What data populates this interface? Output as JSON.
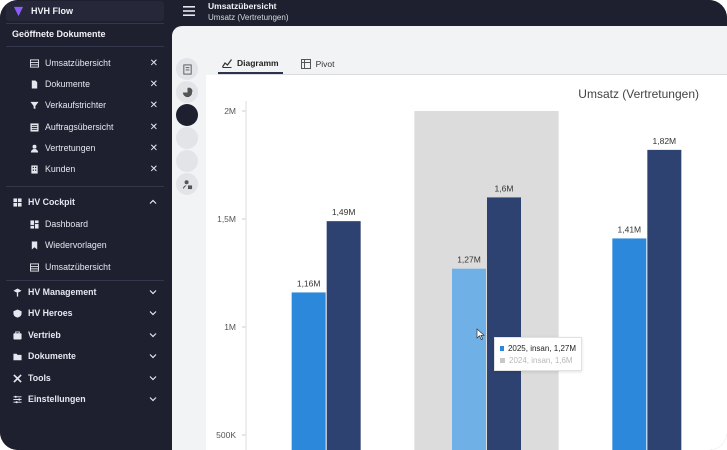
{
  "app": {
    "title": "HVH Flow"
  },
  "header": {
    "title": "Umsatzübersicht",
    "subtitle": "Umsatz (Vertretungen)"
  },
  "sidebar": {
    "open_docs_title": "Geöffnete Dokumente",
    "open_docs": [
      {
        "label": "Umsatzübersicht",
        "icon": "table-icon"
      },
      {
        "label": "Dokumente",
        "icon": "file-icon"
      },
      {
        "label": "Verkaufstrichter",
        "icon": "funnel-icon"
      },
      {
        "label": "Auftragsübersicht",
        "icon": "list-icon"
      },
      {
        "label": "Vertretungen",
        "icon": "user-icon"
      },
      {
        "label": "Kunden",
        "icon": "building-icon"
      }
    ],
    "cockpit": {
      "label": "HV Cockpit",
      "items": [
        {
          "label": "Dashboard",
          "icon": "dashboard-icon"
        },
        {
          "label": "Wiedervorlagen",
          "icon": "bookmark-icon"
        },
        {
          "label": "Umsatzübersicht",
          "icon": "table-icon"
        }
      ]
    },
    "groups": [
      {
        "label": "HV Management",
        "icon": "management-icon"
      },
      {
        "label": "HV Heroes",
        "icon": "heroes-icon"
      },
      {
        "label": "Vertrieb",
        "icon": "sales-icon"
      },
      {
        "label": "Dokumente",
        "icon": "folder-icon"
      },
      {
        "label": "Tools",
        "icon": "tools-icon"
      },
      {
        "label": "Einstellungen",
        "icon": "settings-icon"
      }
    ]
  },
  "tabs": [
    {
      "label": "Diagramm",
      "active": true
    },
    {
      "label": "Pivot",
      "active": false
    }
  ],
  "colors": {
    "series_2025": "#2b88db",
    "series_2024": "#2e4272",
    "highlight": "#dcdcdc",
    "sidebar_bg": "#1e2030"
  },
  "chart_data": {
    "type": "bar",
    "title": "Umsatz (Vertretungen)",
    "yticks": [
      "2M",
      "1,5M",
      "1M",
      "500K"
    ],
    "ylim": [
      500000,
      2000000
    ],
    "series": [
      {
        "name": "2025",
        "values": [
          1160000,
          1270000,
          1410000
        ],
        "labels": [
          "1,16M",
          "1,27M",
          "1,41M"
        ]
      },
      {
        "name": "2024",
        "values": [
          1490000,
          1600000,
          1820000
        ],
        "labels": [
          "1,49M",
          "1,6M",
          "1,82M"
        ]
      }
    ],
    "highlighted_index": 1,
    "tooltip": [
      {
        "text": "2025, insan, 1,27M"
      },
      {
        "text": "2024, insan, 1,6M"
      }
    ]
  }
}
